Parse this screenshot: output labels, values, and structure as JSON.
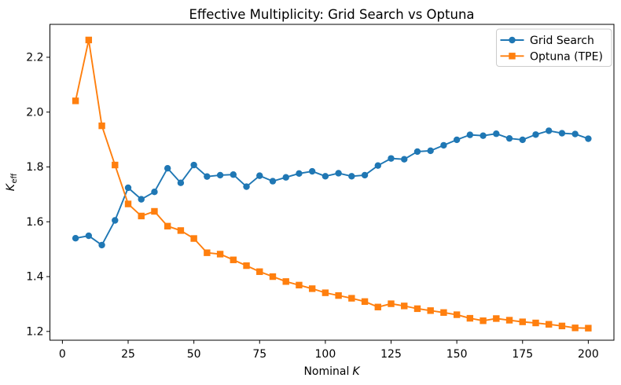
{
  "chart_data": {
    "type": "line",
    "title": "Effective Multiplicity: Grid Search vs Optuna",
    "xlabel_plain": "Nominal",
    "xlabel_italic": "K",
    "ylabel_italic": "K",
    "ylabel_sub": "eff",
    "x": [
      5,
      10,
      15,
      20,
      25,
      30,
      35,
      40,
      45,
      50,
      55,
      60,
      65,
      70,
      75,
      80,
      85,
      90,
      95,
      100,
      105,
      110,
      115,
      120,
      125,
      130,
      135,
      140,
      145,
      150,
      155,
      160,
      165,
      170,
      175,
      180,
      185,
      190,
      195,
      200
    ],
    "series": [
      {
        "name": "Grid Search",
        "color": "#1f77b4",
        "marker": "circle",
        "values": [
          1.54,
          1.549,
          1.515,
          1.605,
          1.724,
          1.682,
          1.709,
          1.795,
          1.742,
          1.807,
          1.765,
          1.77,
          1.772,
          1.728,
          1.768,
          1.748,
          1.762,
          1.776,
          1.784,
          1.766,
          1.777,
          1.766,
          1.77,
          1.805,
          1.831,
          1.828,
          1.856,
          1.859,
          1.879,
          1.899,
          1.917,
          1.914,
          1.921,
          1.904,
          1.899,
          1.918,
          1.932,
          1.923,
          1.92,
          1.903
        ]
      },
      {
        "name": "Optuna (TPE)",
        "color": "#ff7f0e",
        "marker": "square",
        "values": [
          2.041,
          2.263,
          1.95,
          1.807,
          1.665,
          1.621,
          1.638,
          1.584,
          1.568,
          1.539,
          1.487,
          1.482,
          1.461,
          1.44,
          1.418,
          1.4,
          1.382,
          1.369,
          1.356,
          1.341,
          1.331,
          1.321,
          1.309,
          1.289,
          1.301,
          1.293,
          1.283,
          1.276,
          1.269,
          1.261,
          1.248,
          1.239,
          1.247,
          1.241,
          1.235,
          1.231,
          1.226,
          1.22,
          1.213,
          1.212
        ]
      }
    ],
    "xticks": [
      0,
      25,
      50,
      75,
      100,
      125,
      150,
      175,
      200
    ],
    "yticks": [
      1.2,
      1.4,
      1.6,
      1.8,
      2.0,
      2.2
    ],
    "xlim": [
      -4.75,
      209.75
    ],
    "ylim": [
      1.168,
      2.32
    ],
    "grid": false,
    "legend_position": "upper right"
  }
}
